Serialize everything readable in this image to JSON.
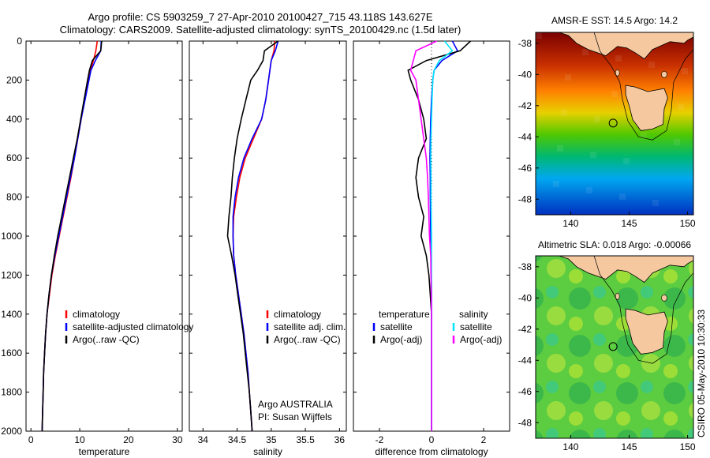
{
  "header": {
    "line1": "Argo profile: CS 5903259_7 27-Apr-2010 20100427_715 43.118S 143.627E",
    "line2": "Climatology: CARS2009. Satellite-adjusted climatology: synTS_20100429.nc (1.5d later)"
  },
  "credit": "CSIRO 05-May-2010 10:30:33",
  "colors": {
    "climatology": "#ff0000",
    "satellite": "#0000ff",
    "argo": "#000000",
    "cyan": "#00e5ff",
    "magenta": "#ff00ff"
  },
  "chart_data": [
    {
      "type": "line",
      "xlabel": "temperature",
      "xlim": [
        -1,
        31
      ],
      "ylim": [
        2000,
        0
      ],
      "xticks": [
        "0",
        "10",
        "20",
        "30"
      ],
      "yticks": [
        "0",
        "200",
        "400",
        "600",
        "800",
        "1000",
        "1200",
        "1400",
        "1600",
        "1800",
        "2000"
      ],
      "depth": [
        0,
        50,
        100,
        150,
        200,
        300,
        400,
        500,
        600,
        700,
        800,
        900,
        1000,
        1100,
        1200,
        1300,
        1400,
        1500,
        1600,
        1700,
        1800,
        1900,
        2000
      ],
      "legend": [
        "climatology",
        "satellite-adjusted climatology",
        "Argo(..raw -QC)"
      ],
      "series": [
        {
          "name": "climatology",
          "color": "#ff0000",
          "values": [
            13.6,
            13.3,
            12.8,
            12.2,
            11.8,
            11.0,
            10.3,
            9.6,
            8.9,
            8.2,
            7.4,
            6.6,
            5.8,
            5.0,
            4.3,
            3.8,
            3.3,
            3.0,
            2.8,
            2.6,
            2.5,
            2.4,
            2.3
          ]
        },
        {
          "name": "satellite-adjusted climatology",
          "color": "#0000ff",
          "values": [
            14.4,
            14.3,
            13.2,
            12.3,
            11.9,
            11.1,
            10.3,
            9.6,
            8.9,
            8.1,
            7.3,
            6.5,
            5.7,
            4.9,
            4.2,
            3.7,
            3.3,
            3.0,
            2.8,
            2.6,
            2.5,
            2.4,
            2.3
          ]
        },
        {
          "name": "Argo(..raw -QC)",
          "color": "#000000",
          "values": [
            14.5,
            14.3,
            12.6,
            12.0,
            11.6,
            10.9,
            10.2,
            9.5,
            8.7,
            7.9,
            7.1,
            6.3,
            5.5,
            4.8,
            4.2,
            3.7,
            3.3,
            3.0,
            2.8,
            2.6,
            2.5,
            2.4,
            2.3
          ]
        }
      ]
    },
    {
      "type": "line",
      "xlabel": "salinity",
      "xlim": [
        33.8,
        36.1
      ],
      "ylim": [
        2000,
        0
      ],
      "xticks": [
        "34",
        "34.5",
        "35",
        "35.5",
        "36"
      ],
      "depth": [
        0,
        50,
        100,
        150,
        200,
        300,
        400,
        500,
        600,
        700,
        800,
        900,
        1000,
        1100,
        1200,
        1300,
        1400,
        1500,
        1600,
        1700,
        1800,
        1900,
        2000
      ],
      "legend": [
        "climatology",
        "satellite adj. clim.",
        "Argo(..raw -QC)"
      ],
      "series": [
        {
          "name": "climatology",
          "color": "#ff0000",
          "values": [
            35.05,
            35.04,
            35.0,
            34.98,
            34.96,
            34.92,
            34.86,
            34.74,
            34.62,
            34.54,
            34.49,
            34.45,
            34.44,
            34.45,
            34.48,
            34.52,
            34.56,
            34.6,
            34.63,
            34.66,
            34.68,
            34.7,
            34.72
          ]
        },
        {
          "name": "satellite adj. clim.",
          "color": "#0000ff",
          "values": [
            35.1,
            35.06,
            35.0,
            34.98,
            34.96,
            34.92,
            34.86,
            34.72,
            34.6,
            34.52,
            34.47,
            34.44,
            34.44,
            34.45,
            34.48,
            34.52,
            34.56,
            34.6,
            34.63,
            34.66,
            34.68,
            34.7,
            34.72
          ]
        },
        {
          "name": "Argo(..raw -QC)",
          "color": "#000000",
          "values": [
            35.1,
            34.9,
            34.88,
            34.8,
            34.7,
            34.63,
            34.56,
            34.5,
            34.46,
            34.43,
            34.41,
            34.38,
            34.36,
            34.42,
            34.47,
            34.51,
            34.55,
            34.59,
            34.62,
            34.65,
            34.68,
            34.7,
            34.72
          ]
        }
      ],
      "annotations": [
        "Argo AUSTRALIA",
        "PI: Susan Wijffels"
      ]
    },
    {
      "type": "line",
      "xlabel": "difference from climatology",
      "xlim": [
        -3,
        3
      ],
      "ylim": [
        2000,
        0
      ],
      "xticks": [
        "-2",
        "0",
        "2"
      ],
      "depth": [
        0,
        50,
        100,
        150,
        200,
        300,
        400,
        500,
        600,
        700,
        800,
        900,
        1000,
        1100,
        1200,
        1300,
        1400,
        1500,
        1600,
        1700,
        1800,
        1900,
        2000
      ],
      "legend_groups": [
        {
          "title": "temperature",
          "items": [
            "satellite",
            "Argo(-adj)"
          ]
        },
        {
          "title": "salinity",
          "items": [
            "satellite",
            "Argo(-adj)"
          ]
        }
      ],
      "series": [
        {
          "name": "satellite",
          "group": "temperature",
          "color": "#0000ff",
          "values": [
            0.8,
            1.0,
            0.4,
            0.1,
            0.05,
            0.0,
            -0.03,
            -0.05,
            -0.06,
            -0.05,
            -0.05,
            -0.04,
            -0.03,
            -0.02,
            -0.01,
            0.0,
            0.0,
            0.0,
            0.0,
            0.0,
            0.0,
            0.0,
            0.0
          ]
        },
        {
          "name": "Argo(-adj)",
          "group": "temperature",
          "color": "#000000",
          "values": [
            1.5,
            1.1,
            -0.2,
            -0.9,
            -0.8,
            -0.5,
            -0.3,
            -0.2,
            -0.5,
            -0.6,
            -0.5,
            -0.3,
            -0.4,
            -0.2,
            -0.1,
            -0.05,
            0.0,
            0.0,
            0.0,
            0.0,
            0.0,
            0.0,
            0.0
          ]
        },
        {
          "name": "satellite",
          "group": "salinity",
          "color": "#00e5ff",
          "values": [
            0.5,
            0.8,
            0.3,
            0.1,
            0.05,
            0.02,
            0.0,
            -0.02,
            -0.03,
            -0.02,
            -0.02,
            -0.01,
            0.0,
            0.0,
            0.0,
            0.0,
            0.0,
            0.0,
            0.0,
            0.0,
            0.0,
            0.0,
            0.0
          ]
        },
        {
          "name": "Argo(-adj)",
          "group": "salinity",
          "color": "#ff00ff",
          "values": [
            0.2,
            -0.6,
            -0.7,
            -0.8,
            -0.6,
            -0.5,
            -0.4,
            -0.3,
            -0.2,
            -0.15,
            -0.12,
            -0.1,
            -0.08,
            -0.03,
            -0.02,
            -0.01,
            0.0,
            0.0,
            0.0,
            0.0,
            0.0,
            0.0,
            0.0
          ]
        }
      ]
    },
    {
      "type": "heatmap",
      "title": "AMSR-E SST: 14.5 Argo: 14.2",
      "xlim": [
        137,
        150.5
      ],
      "ylim": [
        -49,
        -37.3
      ],
      "xticks": [
        "140",
        "145",
        "150"
      ],
      "yticks": [
        "-38",
        "-40",
        "-42",
        "-44",
        "-46",
        "-48"
      ],
      "argo_position": [
        143.627,
        -43.118
      ],
      "land_color": "#f5c8a0",
      "gradient": [
        "#7a0000",
        "#d44000",
        "#ffb300",
        "#c8e000",
        "#30c000",
        "#00b880",
        "#00a0ff",
        "#0040d0"
      ]
    },
    {
      "type": "heatmap",
      "title": "Altimetric SLA: 0.018 Argo: -0.00066",
      "xlim": [
        137,
        150.5
      ],
      "ylim": [
        -49,
        -37.3
      ],
      "xticks": [
        "140",
        "145",
        "150"
      ],
      "yticks": [
        "-38",
        "-40",
        "-42",
        "-44",
        "-46",
        "-48"
      ],
      "argo_position": [
        143.627,
        -43.118
      ],
      "land_color": "#f5c8a0",
      "gradient": [
        "#3ac040",
        "#7ad43a",
        "#c8e83a"
      ]
    }
  ]
}
